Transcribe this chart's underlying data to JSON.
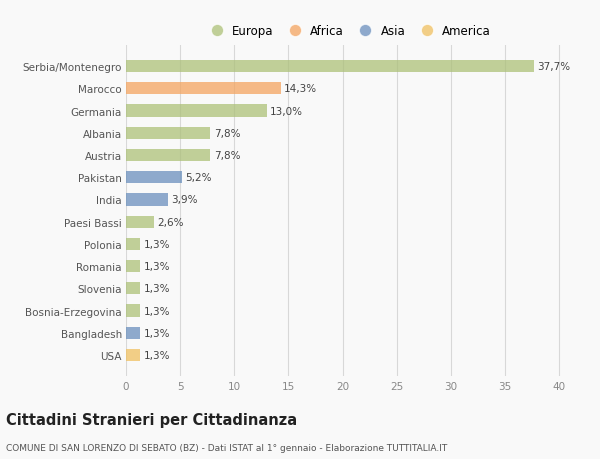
{
  "categories": [
    "Serbia/Montenegro",
    "Marocco",
    "Germania",
    "Albania",
    "Austria",
    "Pakistan",
    "India",
    "Paesi Bassi",
    "Polonia",
    "Romania",
    "Slovenia",
    "Bosnia-Erzegovina",
    "Bangladesh",
    "USA"
  ],
  "values": [
    37.7,
    14.3,
    13.0,
    7.8,
    7.8,
    5.2,
    3.9,
    2.6,
    1.3,
    1.3,
    1.3,
    1.3,
    1.3,
    1.3
  ],
  "labels": [
    "37,7%",
    "14,3%",
    "13,0%",
    "7,8%",
    "7,8%",
    "5,2%",
    "3,9%",
    "2,6%",
    "1,3%",
    "1,3%",
    "1,3%",
    "1,3%",
    "1,3%",
    "1,3%"
  ],
  "continent": [
    "Europa",
    "Africa",
    "Europa",
    "Europa",
    "Europa",
    "Asia",
    "Asia",
    "Europa",
    "Europa",
    "Europa",
    "Europa",
    "Europa",
    "Asia",
    "America"
  ],
  "colors": {
    "Europa": "#adc178",
    "Africa": "#f4a460",
    "Asia": "#6a8fbd",
    "America": "#f0c060"
  },
  "bar_alpha": 0.75,
  "xlim": [
    0,
    41
  ],
  "xticks": [
    0,
    5,
    10,
    15,
    20,
    25,
    30,
    35,
    40
  ],
  "legend_order": [
    "Europa",
    "Africa",
    "Asia",
    "America"
  ],
  "title": "Cittadini Stranieri per Cittadinanza",
  "subtitle": "COMUNE DI SAN LORENZO DI SEBATO (BZ) - Dati ISTAT al 1° gennaio - Elaborazione TUTTITALIA.IT",
  "background_color": "#f9f9f9",
  "grid_color": "#d8d8d8",
  "label_fontsize": 7.5,
  "ytick_fontsize": 7.5,
  "xtick_fontsize": 7.5,
  "title_fontsize": 10.5,
  "subtitle_fontsize": 6.5,
  "legend_fontsize": 8.5
}
